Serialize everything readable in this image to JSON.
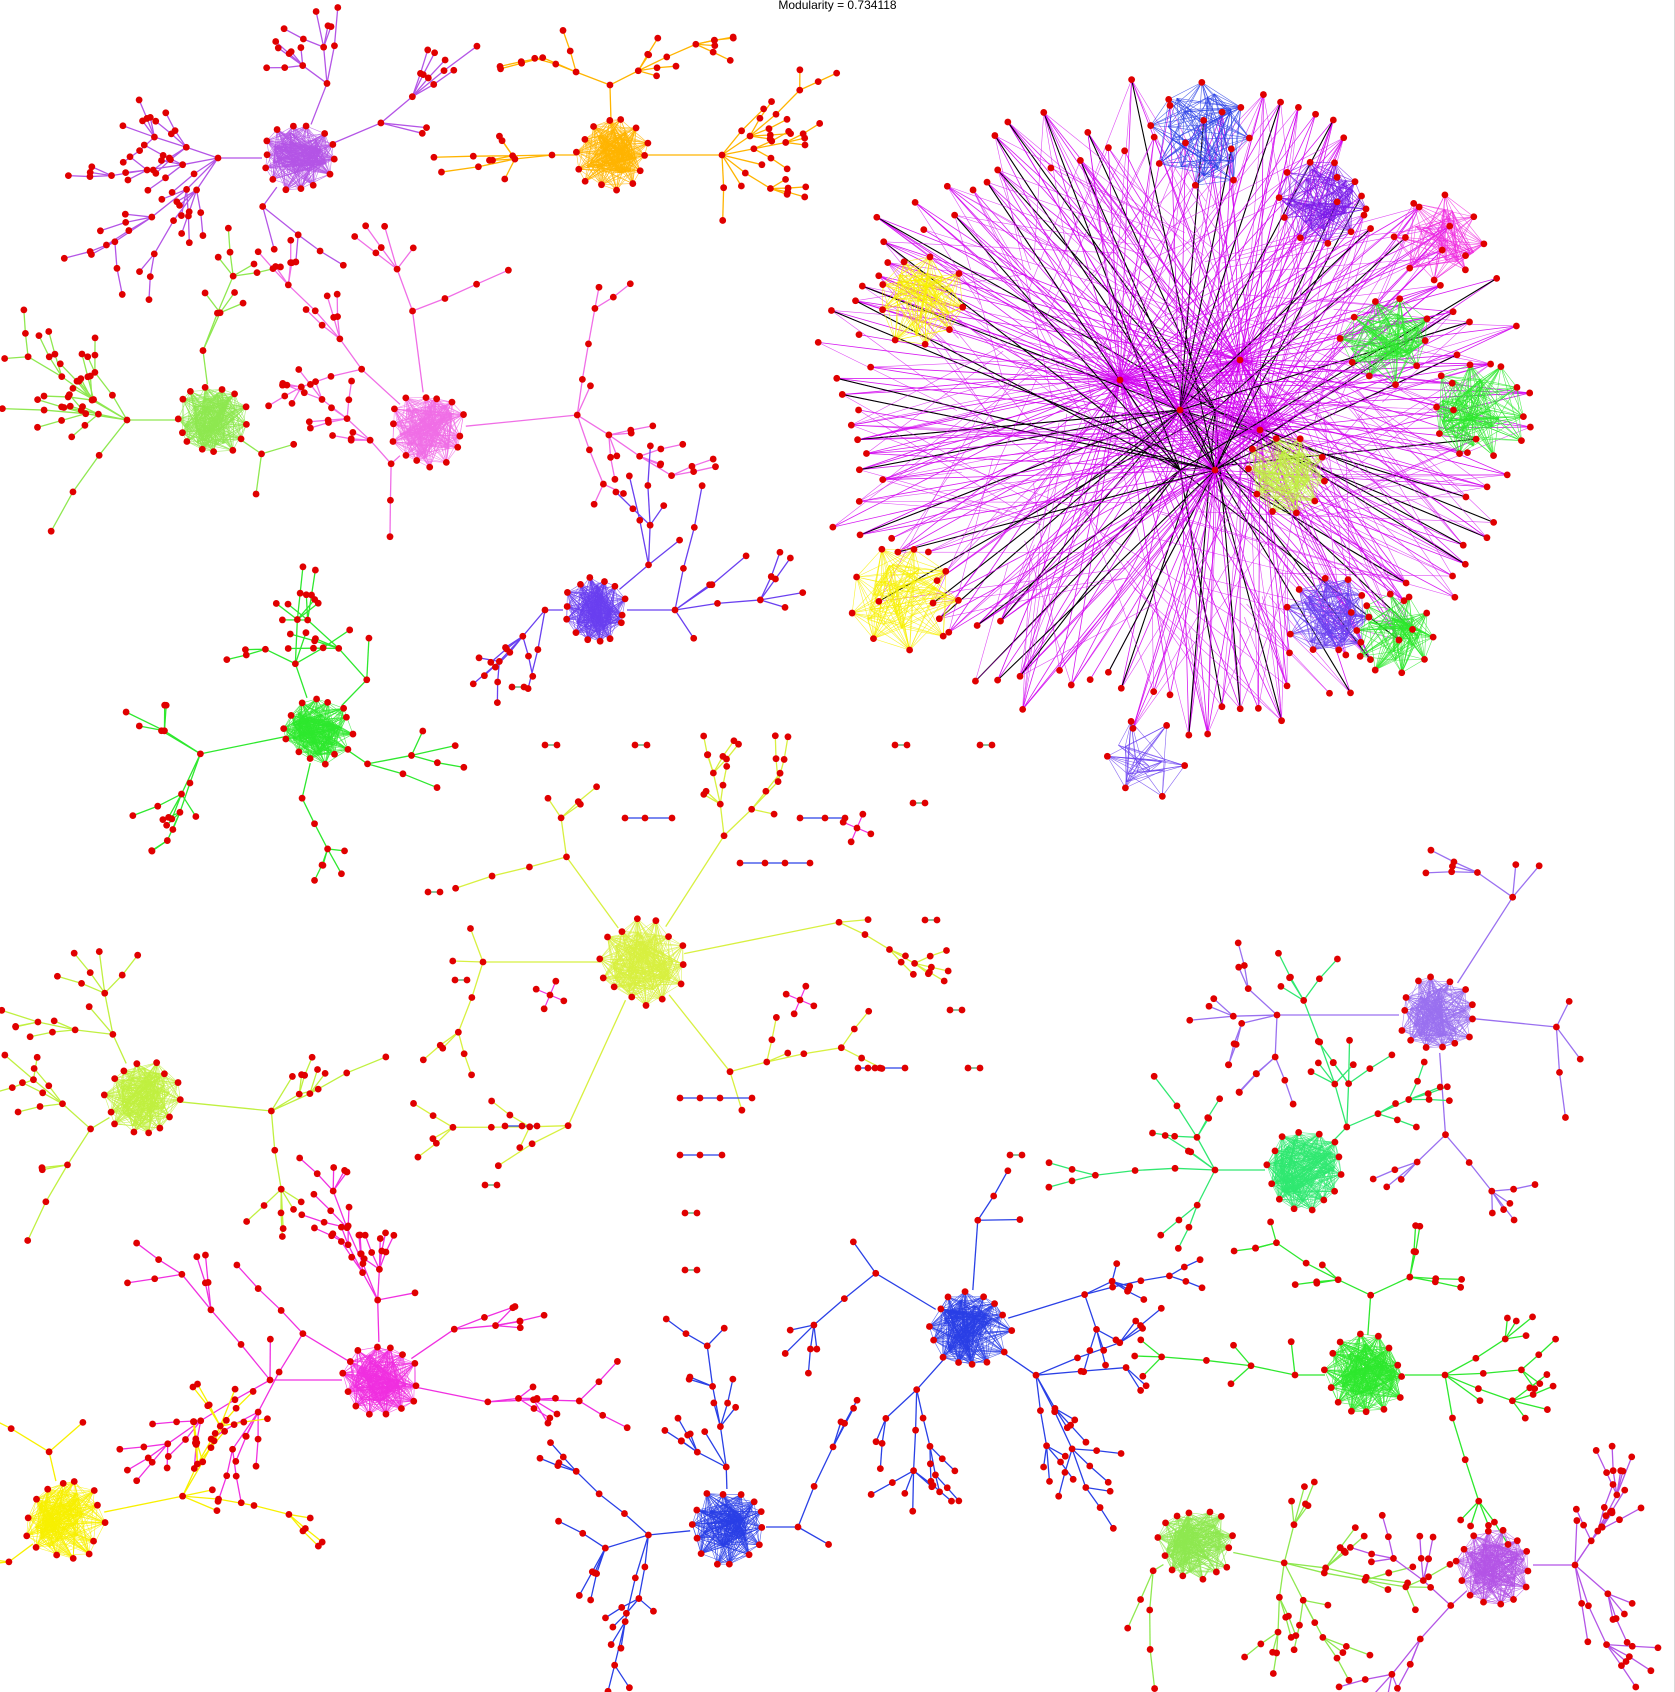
{
  "title": "Modularity = 0.734118",
  "colors": {
    "node": "#e00000",
    "communities": {
      "magenta": "#d200f0",
      "violet": "#b455e6",
      "purple": "#7b1ce8",
      "orange": "#ffb400",
      "pink": "#f06ee6",
      "lightgreen": "#8fe850",
      "green": "#2ee82e",
      "lime": "#c0f040",
      "yellowgreen": "#d8f040",
      "yellow": "#f8f000",
      "hotpink": "#f030e0",
      "blue": "#2a40e6",
      "blueviolet": "#6a40f0",
      "seagreen": "#30e870",
      "lavender": "#9a70f0",
      "black": "#000000"
    }
  }
}
